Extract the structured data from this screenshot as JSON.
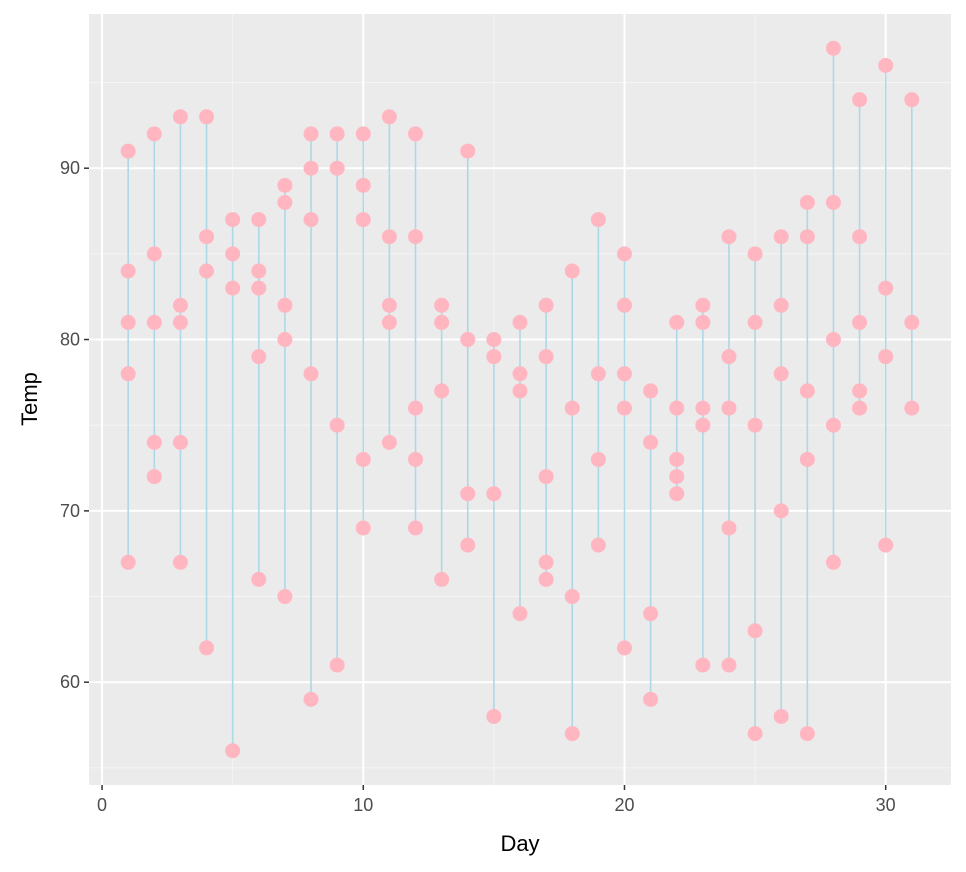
{
  "chart_data": {
    "type": "scatter",
    "xlabel": "Day",
    "ylabel": "Temp",
    "xlim": [
      -0.5,
      32.5
    ],
    "ylim": [
      54,
      99
    ],
    "x_ticks": [
      0,
      10,
      20,
      30
    ],
    "x_tick_labels": [
      "0",
      "10",
      "20",
      "30"
    ],
    "y_ticks": [
      60,
      70,
      80,
      90
    ],
    "y_tick_labels": [
      "60",
      "70",
      "80",
      "90"
    ],
    "grid": true,
    "legend": "none",
    "colors": {
      "panel_background": "#ebebeb",
      "grid_major": "#ffffff",
      "grid_minor": "#f5f5f5",
      "point": "#ffb6c1",
      "segment": "#add8e6"
    },
    "series": [
      {
        "points": [
          [
            1,
            91
          ],
          [
            1,
            84
          ],
          [
            1,
            81
          ],
          [
            1,
            78
          ],
          [
            1,
            67
          ],
          [
            2,
            92
          ],
          [
            2,
            85
          ],
          [
            2,
            81
          ],
          [
            2,
            74
          ],
          [
            2,
            72
          ],
          [
            3,
            93
          ],
          [
            3,
            82
          ],
          [
            3,
            81
          ],
          [
            3,
            74
          ],
          [
            3,
            67
          ],
          [
            4,
            93
          ],
          [
            4,
            86
          ],
          [
            4,
            84
          ],
          [
            4,
            62
          ],
          [
            5,
            87
          ],
          [
            5,
            85
          ],
          [
            5,
            83
          ],
          [
            5,
            56
          ],
          [
            6,
            87
          ],
          [
            6,
            84
          ],
          [
            6,
            83
          ],
          [
            6,
            79
          ],
          [
            6,
            66
          ],
          [
            7,
            89
          ],
          [
            7,
            88
          ],
          [
            7,
            82
          ],
          [
            7,
            80
          ],
          [
            7,
            65
          ],
          [
            8,
            92
          ],
          [
            8,
            90
          ],
          [
            8,
            87
          ],
          [
            8,
            78
          ],
          [
            8,
            59
          ],
          [
            9,
            92
          ],
          [
            9,
            90
          ],
          [
            9,
            75
          ],
          [
            9,
            61
          ],
          [
            10,
            92
          ],
          [
            10,
            89
          ],
          [
            10,
            87
          ],
          [
            10,
            73
          ],
          [
            10,
            69
          ],
          [
            11,
            93
          ],
          [
            11,
            86
          ],
          [
            11,
            82
          ],
          [
            11,
            81
          ],
          [
            11,
            74
          ],
          [
            12,
            92
          ],
          [
            12,
            86
          ],
          [
            12,
            76
          ],
          [
            12,
            73
          ],
          [
            12,
            69
          ],
          [
            13,
            82
          ],
          [
            13,
            81
          ],
          [
            13,
            77
          ],
          [
            13,
            66
          ],
          [
            14,
            91
          ],
          [
            14,
            80
          ],
          [
            14,
            71
          ],
          [
            14,
            68
          ],
          [
            15,
            80
          ],
          [
            15,
            79
          ],
          [
            15,
            71
          ],
          [
            15,
            58
          ],
          [
            16,
            81
          ],
          [
            16,
            78
          ],
          [
            16,
            77
          ],
          [
            16,
            64
          ],
          [
            17,
            82
          ],
          [
            17,
            79
          ],
          [
            17,
            72
          ],
          [
            17,
            67
          ],
          [
            17,
            66
          ],
          [
            18,
            84
          ],
          [
            18,
            76
          ],
          [
            18,
            65
          ],
          [
            18,
            57
          ],
          [
            19,
            87
          ],
          [
            19,
            78
          ],
          [
            19,
            73
          ],
          [
            19,
            68
          ],
          [
            20,
            85
          ],
          [
            20,
            82
          ],
          [
            20,
            78
          ],
          [
            20,
            76
          ],
          [
            20,
            62
          ],
          [
            21,
            77
          ],
          [
            21,
            74
          ],
          [
            21,
            64
          ],
          [
            21,
            59
          ],
          [
            22,
            81
          ],
          [
            22,
            76
          ],
          [
            22,
            73
          ],
          [
            22,
            72
          ],
          [
            22,
            71
          ],
          [
            23,
            82
          ],
          [
            23,
            81
          ],
          [
            23,
            76
          ],
          [
            23,
            75
          ],
          [
            23,
            61
          ],
          [
            24,
            86
          ],
          [
            24,
            79
          ],
          [
            24,
            76
          ],
          [
            24,
            69
          ],
          [
            24,
            61
          ],
          [
            25,
            85
          ],
          [
            25,
            81
          ],
          [
            25,
            75
          ],
          [
            25,
            63
          ],
          [
            25,
            57
          ],
          [
            26,
            86
          ],
          [
            26,
            82
          ],
          [
            26,
            78
          ],
          [
            26,
            70
          ],
          [
            26,
            58
          ],
          [
            27,
            88
          ],
          [
            27,
            86
          ],
          [
            27,
            77
          ],
          [
            27,
            73
          ],
          [
            27,
            57
          ],
          [
            28,
            97
          ],
          [
            28,
            88
          ],
          [
            28,
            80
          ],
          [
            28,
            75
          ],
          [
            28,
            67
          ],
          [
            29,
            94
          ],
          [
            29,
            86
          ],
          [
            29,
            81
          ],
          [
            29,
            77
          ],
          [
            29,
            76
          ],
          [
            30,
            96
          ],
          [
            30,
            83
          ],
          [
            30,
            79
          ],
          [
            30,
            68
          ],
          [
            31,
            94
          ],
          [
            31,
            81
          ],
          [
            31,
            76
          ]
        ]
      }
    ]
  }
}
